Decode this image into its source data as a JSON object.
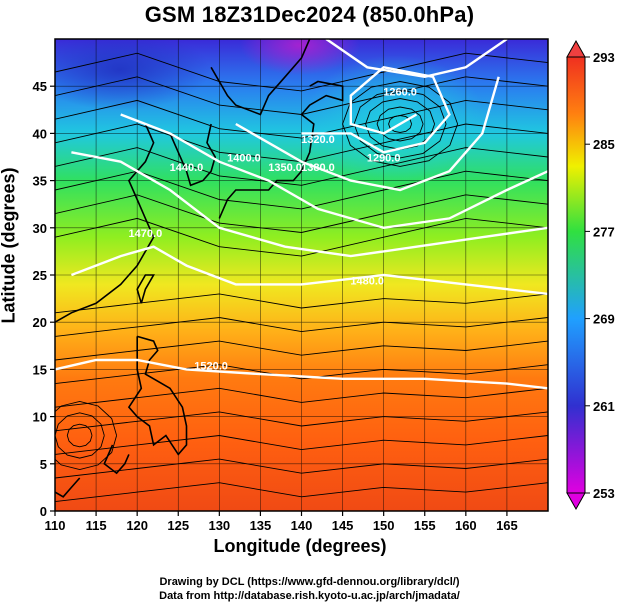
{
  "title": "GSM 18Z31Dec2024 (850.0hPa)",
  "xlabel": "Longitude (degrees)",
  "ylabel": "Latitude  (degrees)",
  "credits": [
    "Drawing by DCL (https://www.gfd-dennou.org/library/dcl/)",
    "Data from http://database.rish.kyoto-u.ac.jp/arch/jmadata/"
  ],
  "chart_data": {
    "type": "heatmap",
    "variable": "temperature",
    "xlim": [
      110,
      170
    ],
    "ylim": [
      0,
      50
    ],
    "x_ticks": [
      110,
      115,
      120,
      125,
      130,
      135,
      140,
      145,
      150,
      155,
      160,
      165
    ],
    "y_ticks": [
      0,
      5,
      10,
      15,
      20,
      25,
      30,
      35,
      40,
      45
    ],
    "grid": true,
    "colorbar": {
      "min": 253,
      "max": 293,
      "ticks": [
        253,
        261,
        269,
        277,
        285,
        293
      ],
      "colors": [
        "#e000e0",
        "#3030d0",
        "#20a0ff",
        "#30e040",
        "#f0f000",
        "#ff8010",
        "#f03020"
      ]
    },
    "contours": [
      {
        "label": "1260.0",
        "lon": 152,
        "lat": 44
      },
      {
        "label": "1290.0",
        "lon": 150,
        "lat": 37
      },
      {
        "label": "1320.0",
        "lon": 142,
        "lat": 39
      },
      {
        "label": "1350.0",
        "lon": 138,
        "lat": 36
      },
      {
        "label": "1380.0",
        "lon": 142,
        "lat": 36
      },
      {
        "label": "1400.0",
        "lon": 133,
        "lat": 37
      },
      {
        "label": "1440.0",
        "lon": 126,
        "lat": 36
      },
      {
        "label": "1470.0",
        "lon": 121,
        "lat": 29
      },
      {
        "label": "1480.0",
        "lon": 148,
        "lat": 24
      },
      {
        "label": "1520.0",
        "lon": 129,
        "lat": 15
      }
    ]
  }
}
